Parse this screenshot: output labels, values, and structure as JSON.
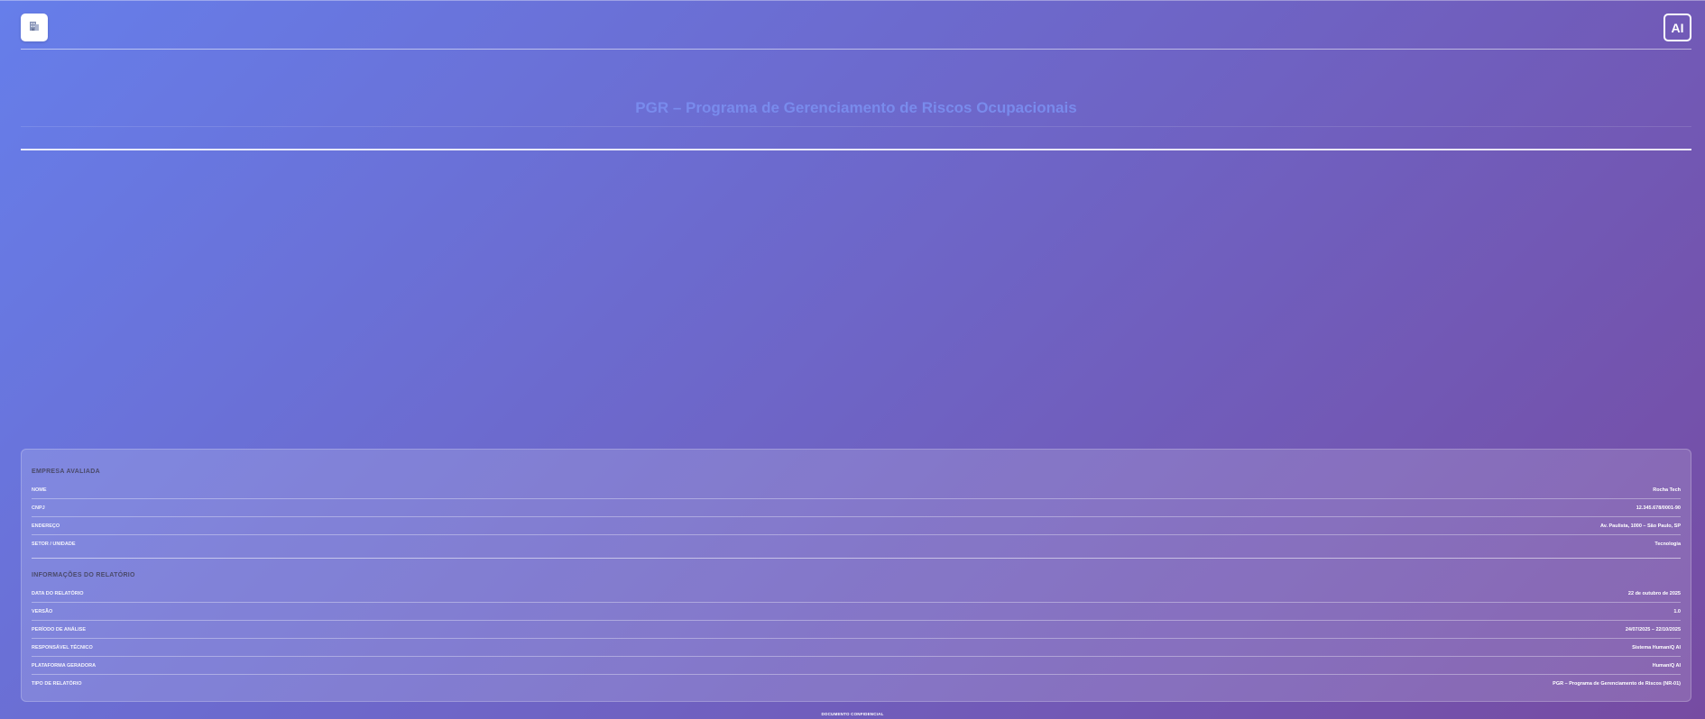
{
  "header": {
    "logo_icon": "building-icon",
    "ai_badge": "AI"
  },
  "cover": {
    "title": "PGR – Programa de Gerenciamento de Riscos Ocupacionais"
  },
  "company": {
    "section_title": "EMPRESA AVALIADA",
    "rows": [
      {
        "label": "NOME",
        "value": "Rocha Tech"
      },
      {
        "label": "CNPJ",
        "value": "12.345.678/0001-90"
      },
      {
        "label": "ENDEREÇO",
        "value": "Av. Paulista, 1000 – São Paulo, SP"
      },
      {
        "label": "SETOR / UNIDADE",
        "value": "Tecnologia"
      }
    ]
  },
  "report": {
    "section_title": "INFORMAÇÕES DO RELATÓRIO",
    "rows": [
      {
        "label": "DATA DO RELATÓRIO",
        "value": "22 de outubro de 2025"
      },
      {
        "label": "VERSÃO",
        "value": "1.0"
      },
      {
        "label": "PERÍODO DE ANÁLISE",
        "value": "24/07/2025 – 22/10/2025"
      },
      {
        "label": "RESPONSÁVEL TÉCNICO",
        "value": "Sistema HumaniQ AI"
      },
      {
        "label": "PLATAFORMA GERADORA",
        "value": "HumaniQ AI"
      },
      {
        "label": "TIPO DE RELATÓRIO",
        "value": "PGR – Programa de Gerenciamento de Riscos (NR-01)"
      }
    ]
  },
  "footer": {
    "text": "DOCUMENTO CONFIDENCIAL"
  },
  "colors": {
    "gradient_start": "#667eea",
    "gradient_end": "#764ba2",
    "title": "#7b8ff0"
  }
}
